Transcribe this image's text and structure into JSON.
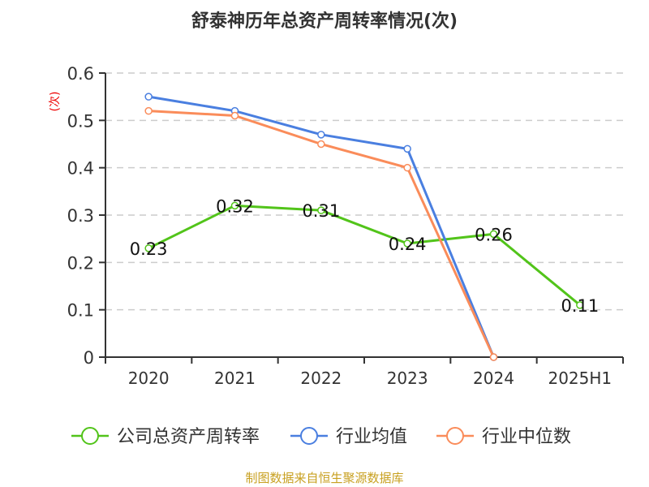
{
  "chart_data": {
    "type": "line",
    "title": "舒泰神历年总资产周转率情况(次)",
    "ylabel": "(次)",
    "xlabel": "",
    "categories": [
      "2020",
      "2021",
      "2022",
      "2023",
      "2024",
      "2025H1"
    ],
    "ylim": [
      0,
      0.6
    ],
    "yticks": [
      "0",
      "0.1",
      "0.2",
      "0.3",
      "0.4",
      "0.5",
      "0.6"
    ],
    "grid": true,
    "legend_placement": "bottom",
    "series": [
      {
        "name": "公司总资产周转率",
        "color": "#52c41a",
        "values": [
          0.23,
          0.32,
          0.31,
          0.24,
          0.26,
          0.11
        ],
        "labels": [
          "0.23",
          "0.32",
          "0.31",
          "0.24",
          "0.26",
          "0.11"
        ]
      },
      {
        "name": "行业均值",
        "color": "#4a7fe0",
        "values": [
          0.55,
          0.52,
          0.47,
          0.44,
          0,
          null
        ]
      },
      {
        "name": "行业中位数",
        "color": "#fa8c5a",
        "values": [
          0.52,
          0.51,
          0.45,
          0.4,
          0,
          null
        ]
      }
    ],
    "source": "制图数据来自恒生聚源数据库"
  }
}
